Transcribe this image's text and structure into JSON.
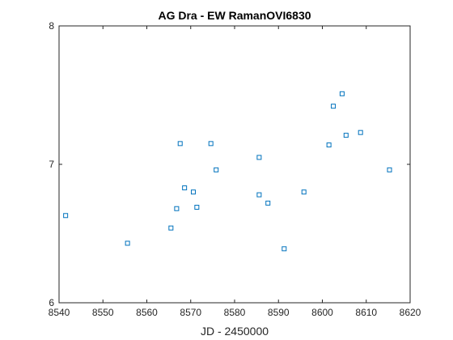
{
  "chart_data": {
    "type": "scatter",
    "title": "AG Dra - EW RamanOVI6830",
    "xlabel": "JD - 2450000",
    "ylabel": "",
    "xlim": [
      8540,
      8620
    ],
    "ylim": [
      6,
      8
    ],
    "xticks": [
      8540,
      8550,
      8560,
      8570,
      8580,
      8590,
      8600,
      8610,
      8620
    ],
    "yticks": [
      6,
      7,
      8
    ],
    "grid": false,
    "marker": "square",
    "marker_color": "#0072BD",
    "points": [
      {
        "x": 8541.5,
        "y": 6.63
      },
      {
        "x": 8555.6,
        "y": 6.43
      },
      {
        "x": 8565.5,
        "y": 6.54
      },
      {
        "x": 8566.8,
        "y": 6.68
      },
      {
        "x": 8567.6,
        "y": 7.15
      },
      {
        "x": 8568.6,
        "y": 6.83
      },
      {
        "x": 8570.6,
        "y": 6.8
      },
      {
        "x": 8571.4,
        "y": 6.69
      },
      {
        "x": 8574.6,
        "y": 7.15
      },
      {
        "x": 8575.8,
        "y": 6.96
      },
      {
        "x": 8585.6,
        "y": 7.05
      },
      {
        "x": 8585.6,
        "y": 6.78
      },
      {
        "x": 8587.6,
        "y": 6.72
      },
      {
        "x": 8591.3,
        "y": 6.39
      },
      {
        "x": 8595.8,
        "y": 6.8
      },
      {
        "x": 8601.5,
        "y": 7.14
      },
      {
        "x": 8602.5,
        "y": 7.42
      },
      {
        "x": 8604.5,
        "y": 7.51
      },
      {
        "x": 8605.4,
        "y": 7.21
      },
      {
        "x": 8608.7,
        "y": 7.23
      },
      {
        "x": 8615.3,
        "y": 6.96
      }
    ]
  }
}
